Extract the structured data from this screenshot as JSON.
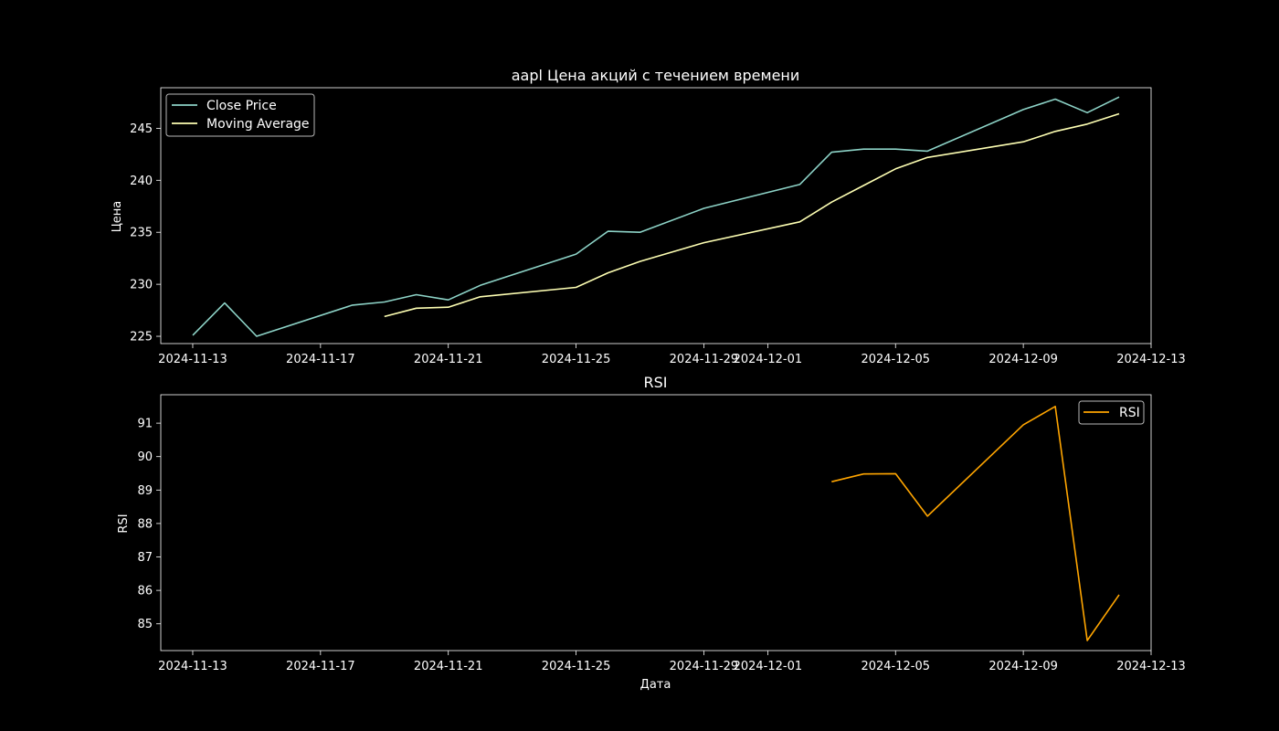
{
  "chart_data": [
    {
      "type": "line",
      "title": "aapl Цена акций с течением времени",
      "xlabel": "",
      "ylabel": "Цена",
      "x_axis": {
        "type": "date",
        "range": [
          "2024-11-12",
          "2024-12-13"
        ],
        "ticks": [
          "2024-11-13",
          "2024-11-17",
          "2024-11-21",
          "2024-11-25",
          "2024-11-29",
          "2024-12-01",
          "2024-12-05",
          "2024-12-09",
          "2024-12-13"
        ],
        "tick_labels": [
          "2024-11-13",
          "2024-11-17",
          "2024-11-21",
          "2024-11-25",
          "2024-11-29",
          "2024-12-01",
          "2024-12-05",
          "2024-12-09",
          "2024-12-13"
        ]
      },
      "ylim": [
        224.3,
        248.9
      ],
      "yticks": [
        225,
        230,
        235,
        240,
        245
      ],
      "grid": false,
      "legend": "upper left",
      "series": [
        {
          "name": "Close Price",
          "color": "#8dd3c7",
          "points": [
            [
              "2024-11-13",
              225.1
            ],
            [
              "2024-11-14",
              228.2
            ],
            [
              "2024-11-15",
              225.0
            ],
            [
              "2024-11-18",
              228.0
            ],
            [
              "2024-11-19",
              228.3
            ],
            [
              "2024-11-20",
              229.0
            ],
            [
              "2024-11-21",
              228.5
            ],
            [
              "2024-11-22",
              229.9
            ],
            [
              "2024-11-25",
              232.9
            ],
            [
              "2024-11-26",
              235.1
            ],
            [
              "2024-11-27",
              235.0
            ],
            [
              "2024-11-29",
              237.3
            ],
            [
              "2024-12-02",
              239.6
            ],
            [
              "2024-12-03",
              242.7
            ],
            [
              "2024-12-04",
              243.0
            ],
            [
              "2024-12-05",
              243.0
            ],
            [
              "2024-12-06",
              242.8
            ],
            [
              "2024-12-09",
              246.8
            ],
            [
              "2024-12-10",
              247.8
            ],
            [
              "2024-12-11",
              246.5
            ],
            [
              "2024-12-12",
              248.0
            ]
          ]
        },
        {
          "name": "Moving Average",
          "color": "#feffb3",
          "points": [
            [
              "2024-11-19",
              226.9
            ],
            [
              "2024-11-20",
              227.7
            ],
            [
              "2024-11-21",
              227.8
            ],
            [
              "2024-11-22",
              228.8
            ],
            [
              "2024-11-25",
              229.7
            ],
            [
              "2024-11-26",
              231.1
            ],
            [
              "2024-11-27",
              232.2
            ],
            [
              "2024-11-29",
              234.0
            ],
            [
              "2024-12-02",
              236.0
            ],
            [
              "2024-12-03",
              237.9
            ],
            [
              "2024-12-04",
              239.5
            ],
            [
              "2024-12-05",
              241.1
            ],
            [
              "2024-12-06",
              242.2
            ],
            [
              "2024-12-09",
              243.7
            ],
            [
              "2024-12-10",
              244.7
            ],
            [
              "2024-12-11",
              245.4
            ],
            [
              "2024-12-12",
              246.4
            ]
          ]
        }
      ]
    },
    {
      "type": "line",
      "title": "RSI",
      "xlabel": "Дата",
      "ylabel": "RSI",
      "x_axis": {
        "type": "date",
        "range": [
          "2024-11-12",
          "2024-12-13"
        ],
        "ticks": [
          "2024-11-13",
          "2024-11-17",
          "2024-11-21",
          "2024-11-25",
          "2024-11-29",
          "2024-12-01",
          "2024-12-05",
          "2024-12-09",
          "2024-12-13"
        ],
        "tick_labels": [
          "2024-11-13",
          "2024-11-17",
          "2024-11-21",
          "2024-11-25",
          "2024-11-29",
          "2024-12-01",
          "2024-12-05",
          "2024-12-09",
          "2024-12-13"
        ]
      },
      "ylim": [
        84.2,
        91.85
      ],
      "yticks": [
        85,
        86,
        87,
        88,
        89,
        90,
        91
      ],
      "grid": false,
      "legend": "upper right",
      "series": [
        {
          "name": "RSI",
          "color": "#ffa500",
          "points": [
            [
              "2024-12-03",
              89.25
            ],
            [
              "2024-12-04",
              89.48
            ],
            [
              "2024-12-05",
              89.49
            ],
            [
              "2024-12-06",
              88.22
            ],
            [
              "2024-12-09",
              90.95
            ],
            [
              "2024-12-10",
              91.5
            ],
            [
              "2024-12-11",
              84.5
            ],
            [
              "2024-12-12",
              85.87
            ]
          ]
        }
      ]
    }
  ]
}
